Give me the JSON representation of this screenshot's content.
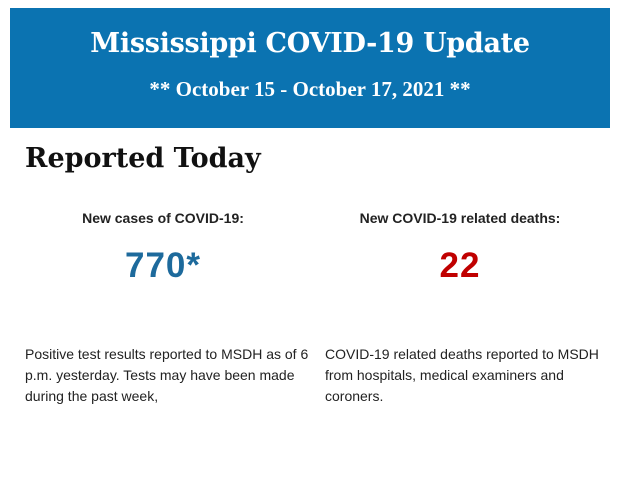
{
  "banner": {
    "title": "Mississippi COVID-19 Update",
    "subtitle": "** October 15 - October 17, 2021 **",
    "color": "#0b73b1"
  },
  "section_heading": "Reported Today",
  "cases": {
    "label": "New cases of COVID-19:",
    "value": "770*",
    "color": "#1d6a9c",
    "description": "Positive test results reported to MSDH as of 6 p.m. yesterday. Tests may have been made during the past week,"
  },
  "deaths": {
    "label": "New COVID-19 related deaths:",
    "value": "22",
    "color": "#c00000",
    "description": "COVID-19 related deaths reported to MSDH from hospitals, medical examiners and coroners."
  }
}
